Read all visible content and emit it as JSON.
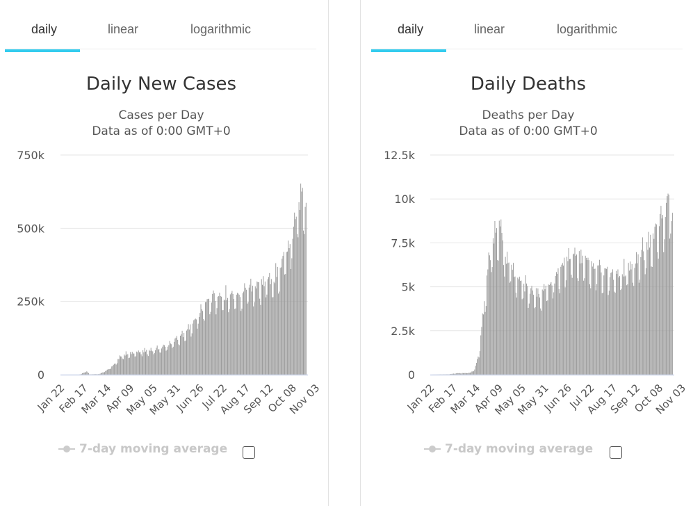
{
  "panels": [
    {
      "tabs": [
        "daily",
        "linear",
        "logarithmic"
      ],
      "legend_label": "7-day moving average",
      "chart_data": {
        "type": "bar",
        "title": "Daily New Cases",
        "subtitle_lines": [
          "Cases per Day",
          "Data as of 0:00 GMT+0"
        ],
        "x_tick_labels": [
          "Jan 22",
          "Feb 17",
          "Mar 14",
          "Apr 09",
          "May 05",
          "May 31",
          "Jun 26",
          "Jul 22",
          "Aug 17",
          "Sep 12",
          "Oct 08",
          "Nov 03"
        ],
        "x_tick_every_days": 26,
        "start_date": "Jan 22",
        "ylim": [
          0,
          750000
        ],
        "y_ticks": [
          0,
          250000,
          500000,
          750000
        ],
        "y_tick_labels": [
          "0",
          "250k",
          "500k",
          "750k"
        ],
        "grid": true,
        "bar_color": "#999999",
        "anchors": [
          [
            0,
            0
          ],
          [
            20,
            200
          ],
          [
            22,
            1000
          ],
          [
            29,
            12000
          ],
          [
            32,
            1000
          ],
          [
            43,
            2000
          ],
          [
            52,
            15000
          ],
          [
            60,
            35000
          ],
          [
            67,
            65000
          ],
          [
            80,
            75000
          ],
          [
            90,
            80000
          ],
          [
            100,
            82000
          ],
          [
            110,
            90000
          ],
          [
            120,
            100000
          ],
          [
            130,
            125000
          ],
          [
            140,
            140000
          ],
          [
            150,
            185000
          ],
          [
            160,
            230000
          ],
          [
            170,
            265000
          ],
          [
            180,
            270000
          ],
          [
            190,
            265000
          ],
          [
            200,
            270000
          ],
          [
            210,
            290000
          ],
          [
            220,
            300000
          ],
          [
            230,
            320000
          ],
          [
            240,
            330000
          ],
          [
            250,
            400000
          ],
          [
            260,
            470000
          ],
          [
            265,
            560000
          ],
          [
            272,
            630000
          ],
          [
            275,
            580000
          ]
        ]
      }
    },
    {
      "tabs": [
        "daily",
        "linear",
        "logarithmic"
      ],
      "legend_label": "7-day moving average",
      "chart_data": {
        "type": "bar",
        "title": "Daily Deaths",
        "subtitle_lines": [
          "Deaths per Day",
          "Data as of 0:00 GMT+0"
        ],
        "x_tick_labels": [
          "Jan 22",
          "Feb 17",
          "Mar 14",
          "Apr 09",
          "May 05",
          "May 31",
          "Jun 26",
          "Jul 22",
          "Aug 17",
          "Sep 12",
          "Oct 08",
          "Nov 03"
        ],
        "x_tick_every_days": 26,
        "start_date": "Jan 22",
        "ylim": [
          0,
          12500
        ],
        "y_ticks": [
          0,
          2500,
          5000,
          7500,
          10000,
          12500
        ],
        "y_tick_labels": [
          "0",
          "2.5k",
          "5k",
          "7.5k",
          "10k",
          "12.5k"
        ],
        "grid": true,
        "bar_color": "#999999",
        "anchors": [
          [
            0,
            0
          ],
          [
            20,
            20
          ],
          [
            30,
            80
          ],
          [
            45,
            100
          ],
          [
            50,
            300
          ],
          [
            55,
            1200
          ],
          [
            60,
            3500
          ],
          [
            65,
            6000
          ],
          [
            72,
            7800
          ],
          [
            78,
            8400
          ],
          [
            85,
            6800
          ],
          [
            95,
            5800
          ],
          [
            105,
            5000
          ],
          [
            115,
            4800
          ],
          [
            125,
            4500
          ],
          [
            135,
            5000
          ],
          [
            145,
            5800
          ],
          [
            155,
            6500
          ],
          [
            165,
            6800
          ],
          [
            175,
            6500
          ],
          [
            185,
            6200
          ],
          [
            195,
            6000
          ],
          [
            205,
            5700
          ],
          [
            215,
            5800
          ],
          [
            225,
            6000
          ],
          [
            235,
            6600
          ],
          [
            245,
            7000
          ],
          [
            255,
            8200
          ],
          [
            265,
            9000
          ],
          [
            270,
            10000
          ],
          [
            275,
            8800
          ]
        ]
      }
    }
  ]
}
